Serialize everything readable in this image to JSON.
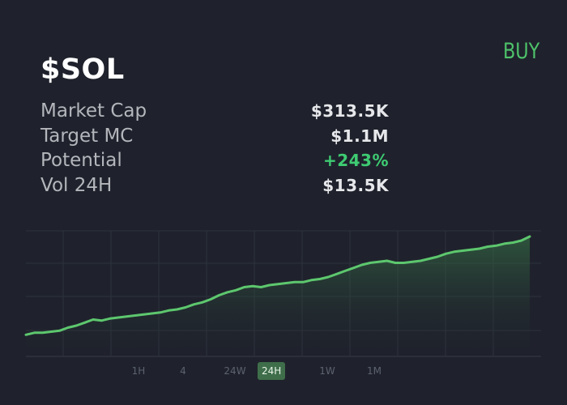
{
  "header": {
    "buy_label": "BUY",
    "symbol": "$SOL"
  },
  "stats": [
    {
      "label": "Market Cap",
      "value": "$313.5K",
      "color": "#e6e7ea"
    },
    {
      "label": "Target MC",
      "value": "$1.1M",
      "color": "#e6e7ea"
    },
    {
      "label": "Potential",
      "value": "+243%",
      "color": "#3ecb72"
    },
    {
      "label": "Vol 24H",
      "value": "$13.5K",
      "color": "#e6e7ea"
    }
  ],
  "timeframes": [
    {
      "label": "1H",
      "active": false
    },
    {
      "label": "4",
      "active": false
    },
    {
      "label": "24W",
      "active": false
    },
    {
      "label": "24H",
      "active": true
    },
    {
      "label": "1W",
      "active": false
    },
    {
      "label": "1M",
      "active": false
    }
  ],
  "colors": {
    "background": "#1f222c",
    "accent_green": "#4ec26a",
    "line": "#5dc76e",
    "grid": "#2e323d"
  },
  "chart_data": {
    "type": "area",
    "series": [
      {
        "values": [
          0.03,
          0.05,
          0.05,
          0.06,
          0.07,
          0.1,
          0.12,
          0.15,
          0.18,
          0.17,
          0.19,
          0.2,
          0.21,
          0.22,
          0.23,
          0.24,
          0.25,
          0.27,
          0.28,
          0.3,
          0.33,
          0.35,
          0.38,
          0.42,
          0.45,
          0.47,
          0.5,
          0.51,
          0.5,
          0.52,
          0.53,
          0.54,
          0.55,
          0.55,
          0.57,
          0.58,
          0.6,
          0.63,
          0.66,
          0.69,
          0.72,
          0.74,
          0.75,
          0.76,
          0.74,
          0.74,
          0.75,
          0.76,
          0.78,
          0.8,
          0.83,
          0.85,
          0.86,
          0.87,
          0.88,
          0.9,
          0.91,
          0.93,
          0.94,
          0.96,
          1.0
        ]
      }
    ]
  }
}
